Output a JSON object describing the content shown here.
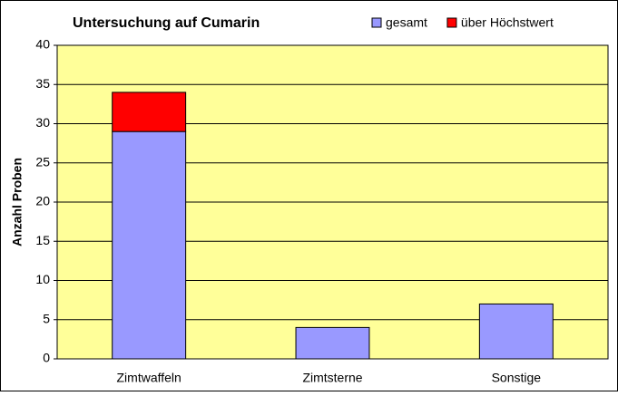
{
  "chart_data": {
    "type": "stacked_bar",
    "title": "Untersuchung auf Cumarin",
    "ylabel": "Anzahl Proben",
    "categories": [
      "Zimtwaffeln",
      "Zimtsterne",
      "Sonstige"
    ],
    "series": [
      {
        "name": "gesamt",
        "color": "#9999ff",
        "values": [
          29,
          4,
          7
        ]
      },
      {
        "name": "über Höchstwert",
        "color": "#ff0000",
        "values": [
          5,
          0,
          0
        ]
      }
    ],
    "ylim": [
      0,
      40
    ],
    "yticks": [
      0,
      5,
      10,
      15,
      20,
      25,
      30,
      35,
      40
    ],
    "grid": true,
    "plot_background": "#ffff99"
  }
}
